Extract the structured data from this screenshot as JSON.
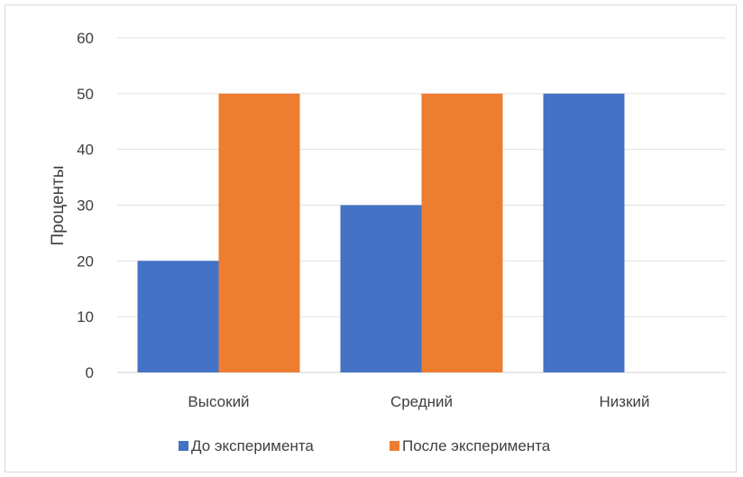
{
  "chart_data": {
    "type": "bar",
    "categories": [
      "Высокий",
      "Средний",
      "Низкий"
    ],
    "series": [
      {
        "name": "До эксперимента",
        "values": [
          20,
          30,
          50
        ],
        "color": "#4472C4"
      },
      {
        "name": "После эксперимента",
        "values": [
          50,
          50,
          0
        ],
        "color": "#ED7D31"
      }
    ],
    "title": "",
    "xlabel": "",
    "ylabel": "Проценты",
    "ylim": [
      0,
      60
    ],
    "yticks": [
      "0",
      "10",
      "20",
      "30",
      "40",
      "50",
      "60"
    ],
    "grid": true,
    "legend_position": "bottom"
  }
}
